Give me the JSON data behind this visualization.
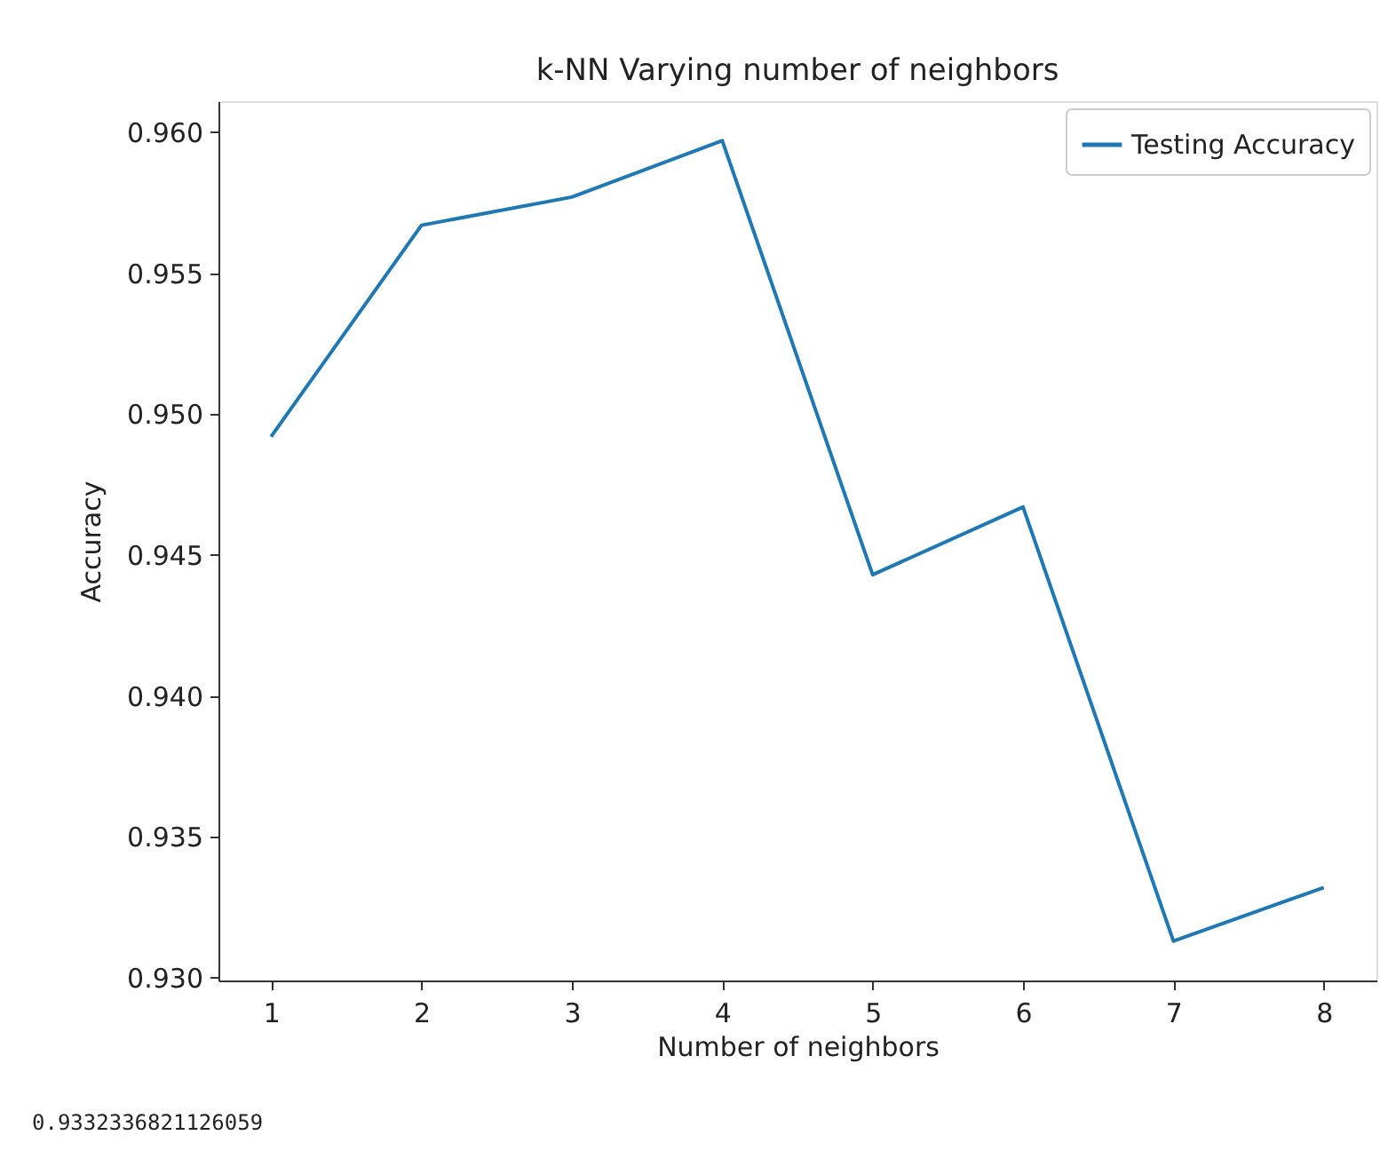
{
  "chart_data": {
    "type": "line",
    "title": "k-NN Varying number of neighbors",
    "xlabel": "Number of neighbors",
    "ylabel": "Accuracy",
    "x": [
      1,
      2,
      3,
      4,
      5,
      6,
      7,
      8
    ],
    "series": [
      {
        "name": "Testing Accuracy",
        "color": "#1f77b4",
        "values": [
          0.9492,
          0.9567,
          0.9577,
          0.9597,
          0.9443,
          0.9467,
          0.9313,
          0.9332
        ]
      }
    ],
    "xlim": [
      0.65,
      8.35
    ],
    "xticks": [
      1,
      2,
      3,
      4,
      5,
      6,
      7,
      8
    ],
    "ylim": [
      0.9299,
      0.9611
    ],
    "yticks": [
      {
        "value": 0.93,
        "label": "0.930"
      },
      {
        "value": 0.935,
        "label": "0.935"
      },
      {
        "value": 0.94,
        "label": "0.940"
      },
      {
        "value": 0.945,
        "label": "0.945"
      },
      {
        "value": 0.95,
        "label": "0.950"
      },
      {
        "value": 0.955,
        "label": "0.955"
      },
      {
        "value": 0.96,
        "label": "0.960"
      }
    ],
    "grid": false,
    "legend": "top right",
    "marker": "none",
    "line_style": "solid",
    "annotations": [
      "0.9332336821126059"
    ]
  }
}
